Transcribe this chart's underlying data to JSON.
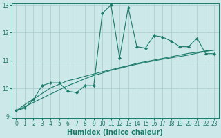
{
  "xlabel": "Humidex (Indice chaleur)",
  "x": [
    0,
    1,
    2,
    3,
    4,
    5,
    6,
    7,
    8,
    9,
    10,
    11,
    12,
    13,
    14,
    15,
    16,
    17,
    18,
    19,
    20,
    21,
    22,
    23
  ],
  "line1": [
    9.2,
    9.3,
    9.6,
    10.1,
    10.2,
    10.2,
    9.9,
    9.85,
    10.1,
    10.1,
    12.7,
    13.0,
    11.1,
    12.9,
    11.5,
    11.45,
    11.9,
    11.85,
    11.7,
    11.5,
    11.5,
    11.8,
    11.25,
    11.25
  ],
  "line2": [
    9.2,
    9.35,
    9.5,
    9.65,
    9.8,
    9.95,
    10.1,
    10.22,
    10.35,
    10.47,
    10.55,
    10.65,
    10.72,
    10.8,
    10.87,
    10.93,
    10.99,
    11.05,
    11.1,
    11.15,
    11.2,
    11.27,
    11.33,
    11.38
  ],
  "line3": [
    9.2,
    9.42,
    9.62,
    9.82,
    10.02,
    10.15,
    10.28,
    10.35,
    10.44,
    10.52,
    10.6,
    10.67,
    10.75,
    10.82,
    10.9,
    10.96,
    11.02,
    11.08,
    11.14,
    11.2,
    11.26,
    11.3,
    11.35,
    11.38
  ],
  "bg_color": "#cce8e8",
  "grid_color": "#aacccc",
  "line_color": "#1a7a6a",
  "ylim": [
    8.95,
    13.05
  ],
  "xlim": [
    -0.5,
    23.5
  ],
  "yticks": [
    9,
    10,
    11,
    12,
    13
  ],
  "xticks": [
    0,
    1,
    2,
    3,
    4,
    5,
    6,
    7,
    8,
    9,
    10,
    11,
    12,
    13,
    14,
    15,
    16,
    17,
    18,
    19,
    20,
    21,
    22,
    23
  ],
  "tick_fontsize": 5.5,
  "xlabel_fontsize": 7.0
}
